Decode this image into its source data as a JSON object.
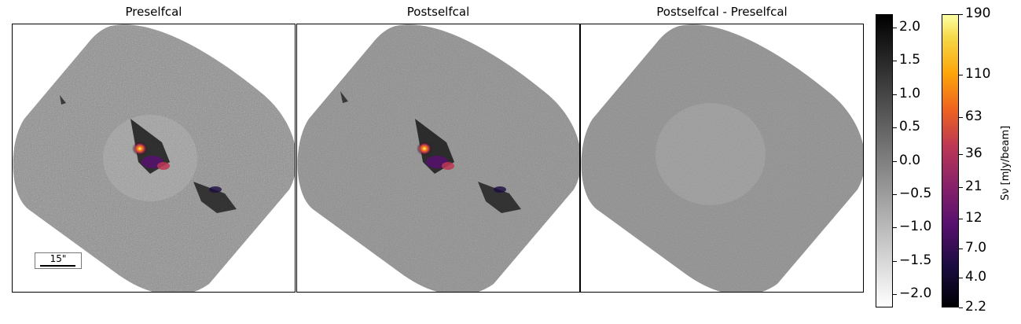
{
  "panels": [
    {
      "title": "Preselfcal"
    },
    {
      "title": "Postselfcal"
    },
    {
      "title": "Postselfcal - Preselfcal"
    }
  ],
  "scalebar": {
    "label": "15\""
  },
  "chart_data": [
    {
      "type": "heatmap",
      "title": "Preselfcal",
      "description_colormap": "gray residual with inferno emission overlay",
      "emission_visible": true
    },
    {
      "type": "heatmap",
      "title": "Postselfcal",
      "description_colormap": "gray residual with inferno emission overlay",
      "emission_visible": true
    },
    {
      "type": "heatmap",
      "title": "Postselfcal - Preselfcal",
      "description_colormap": "gray difference",
      "emission_visible": false
    }
  ],
  "colorbars": {
    "gray": {
      "range": [
        -2.2,
        2.2
      ],
      "ticks": [
        2.0,
        1.5,
        1.0,
        0.5,
        0.0,
        -0.5,
        -1.0,
        -1.5,
        -2.0
      ],
      "tick_labels": [
        "2.0",
        "1.5",
        "1.0",
        "0.5",
        "0.0",
        "−0.5",
        "−1.0",
        "−1.5",
        "−2.0"
      ]
    },
    "inferno": {
      "label": "Sν [mJy/beam]",
      "ticks": [
        190,
        110,
        63,
        36,
        21,
        12,
        7.0,
        4.0,
        2.2
      ],
      "tick_labels": [
        "190",
        "110",
        "63",
        "36",
        "21",
        "12",
        "7.0",
        "4.0",
        "2.2"
      ]
    }
  }
}
